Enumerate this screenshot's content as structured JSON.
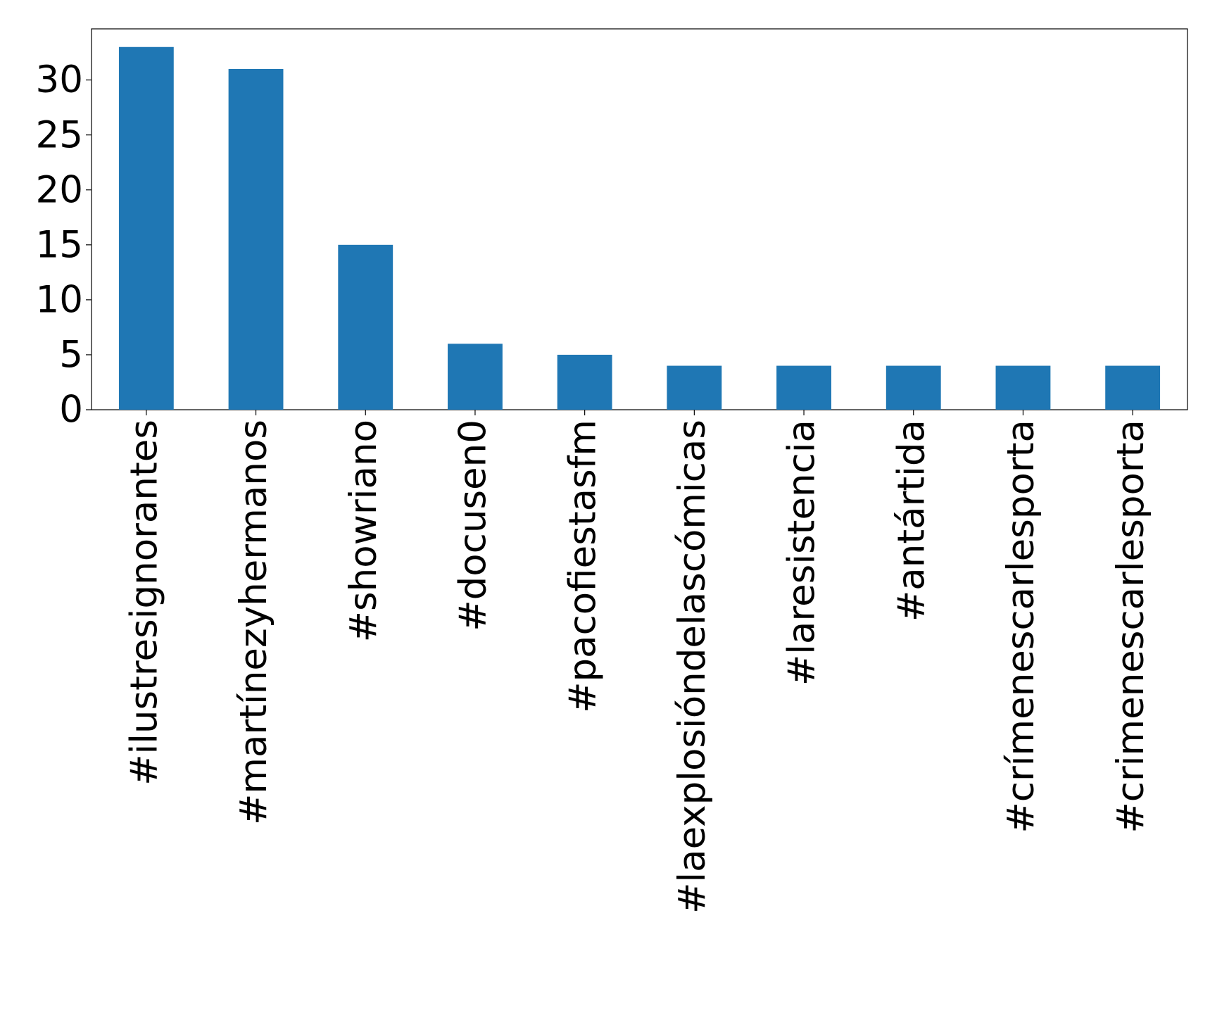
{
  "chart_data": {
    "type": "bar",
    "categories": [
      "#ilustresignorantes",
      "#martínezyhermanos",
      "#showriano",
      "#docusen0",
      "#pacofiestasfm",
      "#laexplosióndelascómicas",
      "#laresistencia",
      "#antártida",
      "#crímenescarlesporta",
      "#crimenescarlesporta"
    ],
    "values": [
      33,
      31,
      15,
      6,
      5,
      4,
      4,
      4,
      4,
      4
    ],
    "color": "#1f77b4",
    "ylim": [
      0,
      34.65
    ],
    "yticks": [
      0,
      5,
      10,
      15,
      20,
      25,
      30
    ],
    "grid": false
  }
}
